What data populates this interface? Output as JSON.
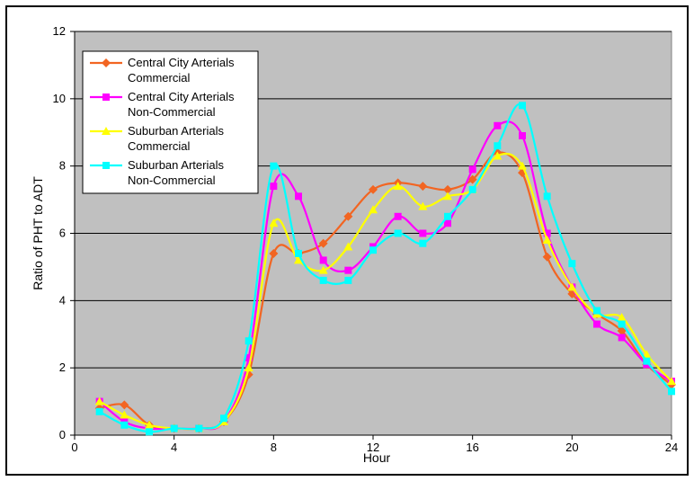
{
  "chart_data": {
    "type": "line",
    "title": "",
    "xlabel": "Hour",
    "ylabel": "Ratio of PHT to ADT",
    "xlim": [
      0,
      24
    ],
    "ylim": [
      0,
      12
    ],
    "xticks": [
      0,
      4,
      8,
      12,
      16,
      20,
      24
    ],
    "yticks": [
      0,
      2,
      4,
      6,
      8,
      10,
      12
    ],
    "grid": "horizontal",
    "background": "#c0c0c0",
    "legend_position": "top-left",
    "x": [
      1,
      2,
      3,
      4,
      5,
      6,
      7,
      8,
      9,
      10,
      11,
      12,
      13,
      14,
      15,
      16,
      17,
      18,
      19,
      20,
      21,
      22,
      23,
      24
    ],
    "series": [
      {
        "name": "Central City Arterials Commercial",
        "legend_lines": [
          "Central City Arterials",
          "Commercial"
        ],
        "color": "#f26522",
        "marker": "diamond",
        "values": [
          0.8,
          0.9,
          0.3,
          0.2,
          0.2,
          0.4,
          1.8,
          5.4,
          5.4,
          5.7,
          6.5,
          7.3,
          7.5,
          7.4,
          7.3,
          7.6,
          8.4,
          7.8,
          5.3,
          4.2,
          3.6,
          3.1,
          2.1,
          1.5
        ]
      },
      {
        "name": "Central City Arterials Non-Commercial",
        "legend_lines": [
          "Central City Arterials",
          "Non-Commercial"
        ],
        "color": "#ff00ff",
        "marker": "square",
        "values": [
          1.0,
          0.4,
          0.2,
          0.2,
          0.2,
          0.4,
          2.3,
          7.4,
          7.1,
          5.2,
          4.9,
          5.6,
          6.5,
          6.0,
          6.3,
          7.9,
          9.2,
          8.9,
          6.0,
          4.4,
          3.3,
          2.9,
          2.1,
          1.6
        ]
      },
      {
        "name": "Suburban Arterials Commercial",
        "legend_lines": [
          "Suburban Arterials",
          "Commercial"
        ],
        "color": "#ffff00",
        "marker": "triangle",
        "values": [
          1.0,
          0.6,
          0.3,
          0.2,
          0.2,
          0.4,
          2.0,
          6.3,
          5.2,
          4.9,
          5.6,
          6.7,
          7.4,
          6.8,
          7.1,
          7.3,
          8.3,
          8.0,
          5.8,
          4.4,
          3.6,
          3.5,
          2.4,
          1.6
        ]
      },
      {
        "name": "Suburban Arterials Non-Commercial",
        "legend_lines": [
          "Suburban Arterials",
          "Non-Commercial"
        ],
        "color": "#00ffff",
        "marker": "square",
        "values": [
          0.7,
          0.3,
          0.1,
          0.2,
          0.2,
          0.5,
          2.8,
          8.0,
          5.4,
          4.6,
          4.6,
          5.5,
          6.0,
          5.7,
          6.5,
          7.3,
          8.6,
          9.8,
          7.1,
          5.1,
          3.7,
          3.3,
          2.2,
          1.3
        ]
      }
    ]
  }
}
